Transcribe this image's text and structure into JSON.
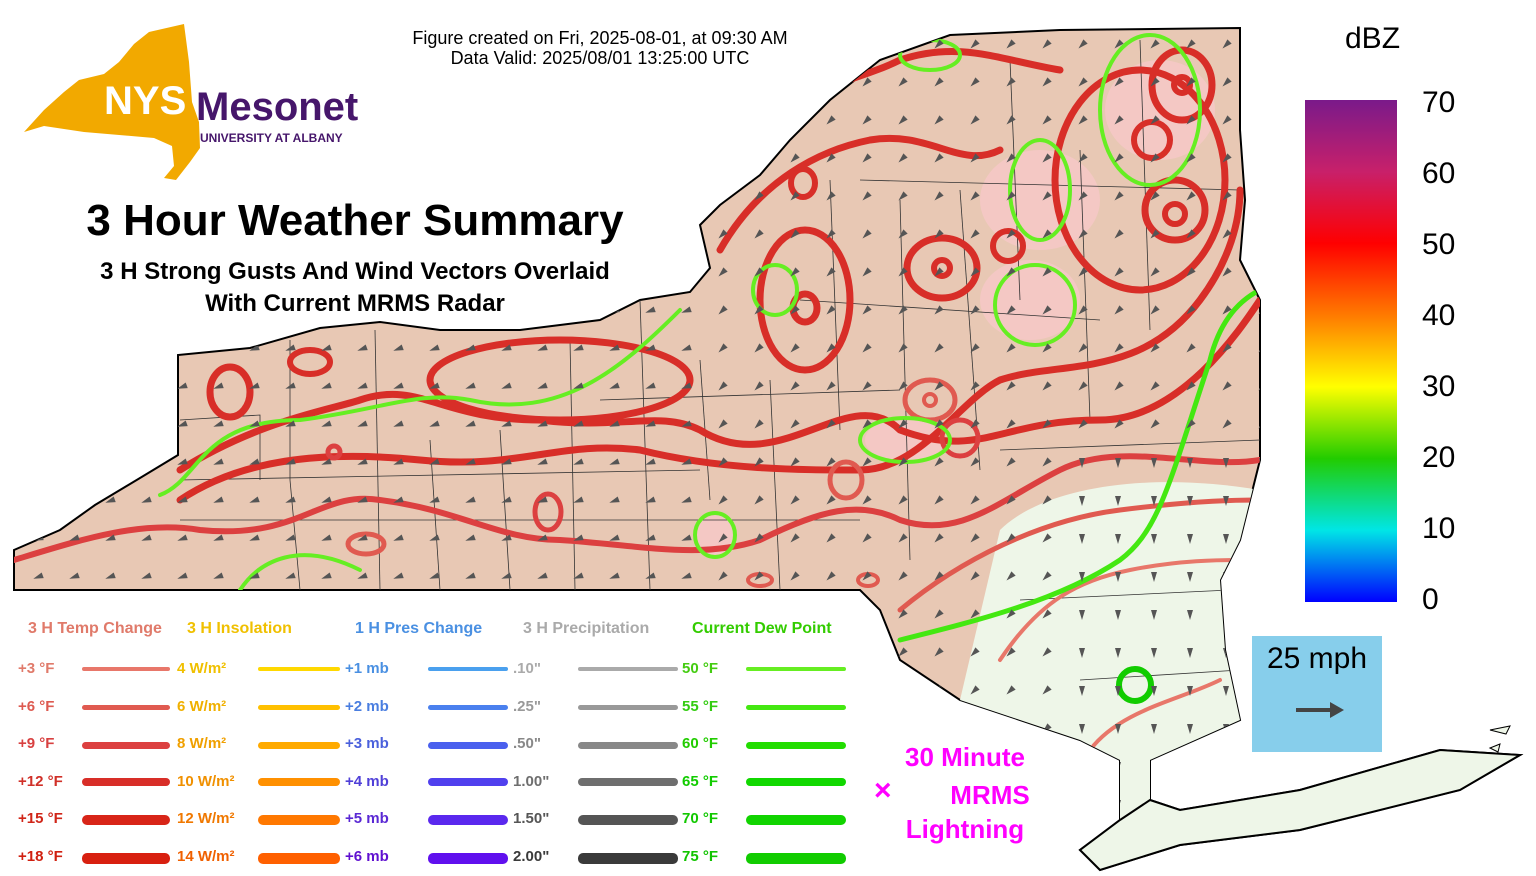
{
  "header": {
    "created": "Figure created on Fri, 2025-08-01, at 09:30 AM",
    "valid": "Data Valid: 2025/08/01 13:25:00 UTC"
  },
  "logo": {
    "nys": "NYS",
    "mesonet": "Mesonet",
    "univ": "UNIVERSITY AT ALBANY",
    "gold": "#f2a900",
    "purple": "#46166b"
  },
  "title": "3 Hour Weather Summary",
  "subtitle_1": "3 H Strong Gusts And Wind Vectors Overlaid",
  "subtitle_2": "With Current MRMS Radar",
  "legend": [
    {
      "title": "3 H Temp Change",
      "title_color": "#e07a6a",
      "rows": [
        {
          "label": "+3 °F",
          "color": "#e8776a",
          "label_color": "#e07a6a"
        },
        {
          "label": "+6 °F",
          "color": "#e05a50",
          "label_color": "#dd5a50"
        },
        {
          "label": "+9 °F",
          "color": "#dc4040",
          "label_color": "#d84040"
        },
        {
          "label": "+12 °F",
          "color": "#d82e28",
          "label_color": "#d03028"
        },
        {
          "label": "+15 °F",
          "color": "#d82518",
          "label_color": "#d02518"
        },
        {
          "label": "+18 °F",
          "color": "#d82010",
          "label_color": "#d02010"
        }
      ]
    },
    {
      "title": "3 H Insolation",
      "title_color": "#f0c000",
      "rows": [
        {
          "label": "4 W/m²",
          "color": "#ffd800",
          "label_color": "#f0c000"
        },
        {
          "label": "6 W/m²",
          "color": "#ffc000",
          "label_color": "#f0b000"
        },
        {
          "label": "8 W/m²",
          "color": "#ffaa00",
          "label_color": "#f0a000"
        },
        {
          "label": "10 W/m²",
          "color": "#ff9000",
          "label_color": "#f09000"
        },
        {
          "label": "12 W/m²",
          "color": "#ff7800",
          "label_color": "#f07800"
        },
        {
          "label": "14 W/m²",
          "color": "#ff6000",
          "label_color": "#f06000"
        }
      ]
    },
    {
      "title": "1 H Pres Change",
      "title_color": "#4a90e2",
      "rows": [
        {
          "label": "+1 mb",
          "color": "#4aa0ee",
          "label_color": "#4a90e2"
        },
        {
          "label": "+2 mb",
          "color": "#4a80ee",
          "label_color": "#4a7ee0"
        },
        {
          "label": "+3 mb",
          "color": "#4a60ee",
          "label_color": "#4a60dc"
        },
        {
          "label": "+4 mb",
          "color": "#5040ee",
          "label_color": "#5040d8"
        },
        {
          "label": "+5 mb",
          "color": "#5a28ee",
          "label_color": "#5a28d4"
        },
        {
          "label": "+6 mb",
          "color": "#6010ee",
          "label_color": "#6010d0"
        }
      ]
    },
    {
      "title": "3 H Precipitation",
      "title_color": "#aaaaaa",
      "rows": [
        {
          "label": ".10\"",
          "color": "#aaaaaa",
          "label_color": "#aaaaaa"
        },
        {
          "label": ".25\"",
          "color": "#999999",
          "label_color": "#999999"
        },
        {
          "label": ".50\"",
          "color": "#888888",
          "label_color": "#888888"
        },
        {
          "label": "1.00\"",
          "color": "#6e6e6e",
          "label_color": "#6e6e6e"
        },
        {
          "label": "1.50\"",
          "color": "#555555",
          "label_color": "#555555"
        },
        {
          "label": "2.00\"",
          "color": "#3a3a3a",
          "label_color": "#3a3a3a"
        }
      ]
    },
    {
      "title": "Current Dew Point",
      "title_color": "#33cc00",
      "rows": [
        {
          "label": "50 °F",
          "color": "#66ee22",
          "label_color": "#44cc11"
        },
        {
          "label": "55 °F",
          "color": "#44e811",
          "label_color": "#33cc11"
        },
        {
          "label": "60 °F",
          "color": "#22dd00",
          "label_color": "#22cc00"
        },
        {
          "label": "65 °F",
          "color": "#11d800",
          "label_color": "#11cc00"
        },
        {
          "label": "70 °F",
          "color": "#11d400",
          "label_color": "#11c800"
        },
        {
          "label": "75 °F",
          "color": "#11cc00",
          "label_color": "#11c400"
        }
      ]
    }
  ],
  "colorbar": {
    "unit": "dBZ",
    "ticks": [
      "70",
      "60",
      "50",
      "40",
      "30",
      "20",
      "10",
      "0"
    ],
    "colors": [
      "#7a1a8a",
      "#c8206a",
      "#ff0000",
      "#ff7a00",
      "#ffff00",
      "#22cc00",
      "#00e6e6",
      "#0000ff"
    ]
  },
  "scale": {
    "label": "25 mph"
  },
  "lightning": {
    "line1": "30 Minute",
    "line2": "MRMS",
    "line3": "Lightning",
    "marker": "×"
  },
  "map": {
    "land_color": "#e8c8b4",
    "south_color": "#eef6e8"
  }
}
